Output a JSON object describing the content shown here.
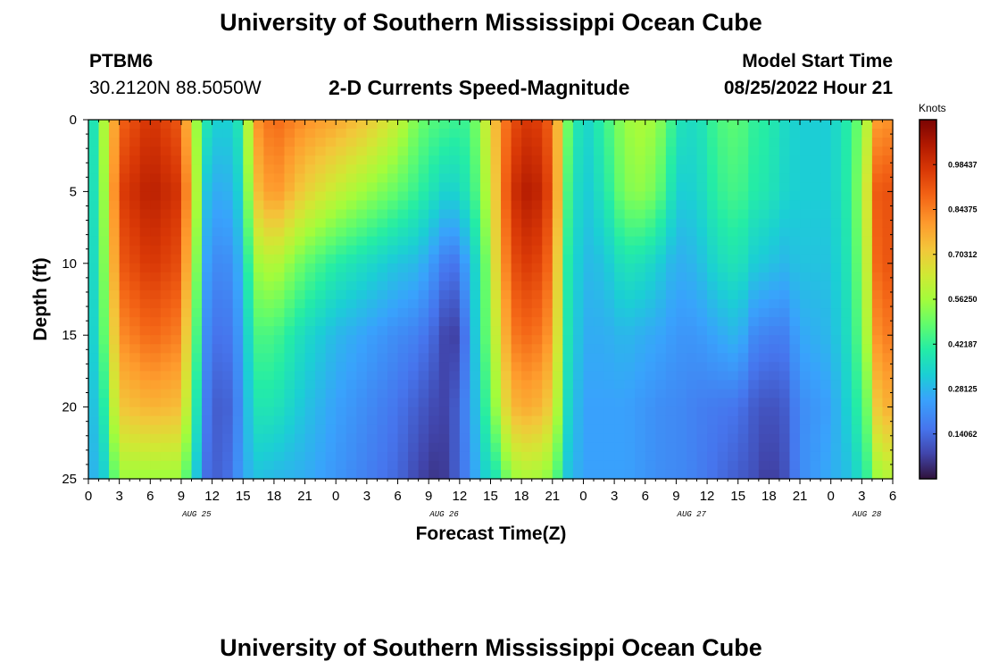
{
  "header": {
    "title": "University of Southern Mississippi Ocean Cube",
    "station_id": "PTBM6",
    "coordinates": "30.2120N  88.5050W",
    "product_title": "2-D Currents Speed-Magnitude",
    "model_start_label": "Model Start Time",
    "model_start_value": "08/25/2022 Hour 21"
  },
  "footer": {
    "title": "University of Southern Mississippi Ocean Cube"
  },
  "chart_data": {
    "type": "heatmap",
    "title": "2-D Currents Speed-Magnitude",
    "xlabel": "Forecast Time(Z)",
    "ylabel": "Depth (ft)",
    "ylim": [
      0,
      25
    ],
    "y_ticks": [
      "0",
      "5",
      "10",
      "15",
      "20",
      "25"
    ],
    "y_tick_values": [
      0,
      5,
      10,
      15,
      20,
      25
    ],
    "x_hours": [
      0,
      78
    ],
    "x_tick_labels": [
      "0",
      "3",
      "6",
      "9",
      "12",
      "15",
      "18",
      "21",
      "0",
      "3",
      "6",
      "9",
      "12",
      "15",
      "18",
      "21",
      "0",
      "3",
      "6",
      "9",
      "12",
      "15",
      "18",
      "21",
      "0",
      "3",
      "6"
    ],
    "date_labels": [
      {
        "label": "AUG 25",
        "hour": 10.5
      },
      {
        "label": "AUG 26",
        "hour": 34.5
      },
      {
        "label": "AUG 27",
        "hour": 58.5
      },
      {
        "label": "AUG 28",
        "hour": 75.5
      }
    ],
    "colorbar": {
      "unit": "Knots",
      "range": [
        0,
        1.125
      ],
      "labels": [
        "0.98437",
        "0.84375",
        "0.70312",
        "0.56250",
        "0.42187",
        "0.28125",
        "0.14062"
      ],
      "values": [
        0.98437,
        0.84375,
        0.70312,
        0.5625,
        0.42187,
        0.28125,
        0.14062
      ]
    },
    "speed_profiles_knots": {
      "depths_ft": [
        0,
        5,
        10,
        15,
        20,
        25
      ],
      "series": [
        {
          "hour": 0,
          "values": [
            0.28,
            0.28,
            0.27,
            0.26,
            0.25,
            0.25
          ]
        },
        {
          "hour": 1.5,
          "values": [
            0.58,
            0.55,
            0.52,
            0.48,
            0.4,
            0.32
          ]
        },
        {
          "hour": 3,
          "values": [
            0.88,
            0.95,
            0.9,
            0.82,
            0.72,
            0.55
          ]
        },
        {
          "hour": 6,
          "values": [
            0.98,
            1.03,
            0.97,
            0.88,
            0.76,
            0.55
          ]
        },
        {
          "hour": 9,
          "values": [
            0.9,
            0.97,
            0.92,
            0.84,
            0.74,
            0.55
          ]
        },
        {
          "hour": 10.5,
          "values": [
            0.55,
            0.58,
            0.52,
            0.45,
            0.38,
            0.3
          ]
        },
        {
          "hour": 11.5,
          "values": [
            0.38,
            0.3,
            0.24,
            0.2,
            0.17,
            0.15
          ]
        },
        {
          "hour": 13,
          "values": [
            0.3,
            0.24,
            0.18,
            0.14,
            0.1,
            0.12
          ]
        },
        {
          "hour": 15,
          "values": [
            0.4,
            0.35,
            0.28,
            0.24,
            0.22,
            0.24
          ]
        },
        {
          "hour": 16,
          "values": [
            0.8,
            0.72,
            0.55,
            0.45,
            0.38,
            0.3
          ]
        },
        {
          "hour": 18,
          "values": [
            0.88,
            0.82,
            0.6,
            0.45,
            0.38,
            0.28
          ]
        },
        {
          "hour": 21,
          "values": [
            0.82,
            0.7,
            0.48,
            0.35,
            0.3,
            0.26
          ]
        },
        {
          "hour": 24,
          "values": [
            0.78,
            0.62,
            0.4,
            0.28,
            0.24,
            0.22
          ]
        },
        {
          "hour": 27,
          "values": [
            0.72,
            0.55,
            0.35,
            0.24,
            0.2,
            0.18
          ]
        },
        {
          "hour": 30,
          "values": [
            0.62,
            0.48,
            0.3,
            0.2,
            0.16,
            0.14
          ]
        },
        {
          "hour": 32,
          "values": [
            0.5,
            0.42,
            0.28,
            0.18,
            0.12,
            0.08
          ]
        },
        {
          "hour": 34,
          "values": [
            0.45,
            0.35,
            0.2,
            0.12,
            0.08,
            0.05
          ]
        },
        {
          "hour": 35,
          "values": [
            0.45,
            0.32,
            0.15,
            0.05,
            0.08,
            0.08
          ]
        },
        {
          "hour": 36,
          "values": [
            0.42,
            0.35,
            0.18,
            0.1,
            0.15,
            0.15
          ]
        },
        {
          "hour": 37,
          "values": [
            0.45,
            0.4,
            0.28,
            0.22,
            0.22,
            0.2
          ]
        },
        {
          "hour": 38,
          "values": [
            0.55,
            0.5,
            0.4,
            0.4,
            0.35,
            0.3
          ]
        },
        {
          "hour": 39.5,
          "values": [
            0.75,
            0.72,
            0.68,
            0.62,
            0.55,
            0.38
          ]
        },
        {
          "hour": 41,
          "values": [
            0.92,
            0.98,
            0.92,
            0.85,
            0.75,
            0.55
          ]
        },
        {
          "hour": 43,
          "values": [
            0.98,
            1.05,
            0.97,
            0.88,
            0.78,
            0.58
          ]
        },
        {
          "hour": 45,
          "values": [
            0.88,
            0.92,
            0.86,
            0.8,
            0.7,
            0.52
          ]
        },
        {
          "hour": 46.5,
          "values": [
            0.5,
            0.45,
            0.4,
            0.38,
            0.35,
            0.3
          ]
        },
        {
          "hour": 48,
          "values": [
            0.32,
            0.3,
            0.28,
            0.26,
            0.24,
            0.24
          ]
        },
        {
          "hour": 50,
          "values": [
            0.42,
            0.38,
            0.3,
            0.26,
            0.24,
            0.24
          ]
        },
        {
          "hour": 52,
          "values": [
            0.55,
            0.52,
            0.38,
            0.28,
            0.24,
            0.24
          ]
        },
        {
          "hour": 54,
          "values": [
            0.58,
            0.54,
            0.36,
            0.26,
            0.22,
            0.22
          ]
        },
        {
          "hour": 56,
          "values": [
            0.5,
            0.44,
            0.3,
            0.24,
            0.2,
            0.2
          ]
        },
        {
          "hour": 57,
          "values": [
            0.38,
            0.32,
            0.26,
            0.22,
            0.2,
            0.2
          ]
        },
        {
          "hour": 59,
          "values": [
            0.35,
            0.33,
            0.28,
            0.22,
            0.18,
            0.18
          ]
        },
        {
          "hour": 61,
          "values": [
            0.45,
            0.42,
            0.35,
            0.25,
            0.17,
            0.15
          ]
        },
        {
          "hour": 63,
          "values": [
            0.48,
            0.45,
            0.38,
            0.28,
            0.16,
            0.12
          ]
        },
        {
          "hour": 64.5,
          "values": [
            0.42,
            0.4,
            0.32,
            0.2,
            0.12,
            0.1
          ]
        },
        {
          "hour": 66,
          "values": [
            0.4,
            0.38,
            0.3,
            0.18,
            0.1,
            0.06
          ]
        },
        {
          "hour": 67.5,
          "values": [
            0.35,
            0.34,
            0.28,
            0.18,
            0.12,
            0.1
          ]
        },
        {
          "hour": 69,
          "values": [
            0.32,
            0.32,
            0.3,
            0.25,
            0.2,
            0.2
          ]
        },
        {
          "hour": 72,
          "values": [
            0.32,
            0.32,
            0.3,
            0.28,
            0.24,
            0.26
          ]
        },
        {
          "hour": 74,
          "values": [
            0.42,
            0.42,
            0.4,
            0.38,
            0.35,
            0.3
          ]
        },
        {
          "hour": 75.5,
          "values": [
            0.6,
            0.65,
            0.62,
            0.58,
            0.5,
            0.42
          ]
        },
        {
          "hour": 76.5,
          "values": [
            0.8,
            0.9,
            0.88,
            0.82,
            0.72,
            0.55
          ]
        },
        {
          "hour": 78,
          "values": [
            0.82,
            0.92,
            0.92,
            0.86,
            0.78,
            0.6
          ]
        }
      ]
    }
  }
}
